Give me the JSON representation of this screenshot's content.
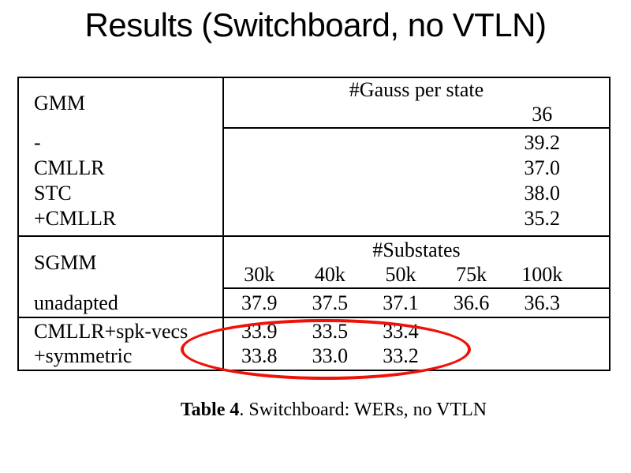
{
  "title": "Results (Switchboard, no VTLN)",
  "table": {
    "gmm": {
      "header": "GMM",
      "col_header": "#Gauss per state",
      "gauss_count": "36",
      "rows": [
        {
          "label": "-",
          "value": "39.2"
        },
        {
          "label": "CMLLR",
          "value": "37.0"
        },
        {
          "label": "STC",
          "value": "38.0"
        },
        {
          "label": "+CMLLR",
          "value": "35.2"
        }
      ]
    },
    "sgmm": {
      "header": "SGMM",
      "col_header": "#Substates",
      "columns": [
        "30k",
        "40k",
        "50k",
        "75k",
        "100k"
      ],
      "unadapted": {
        "label": "unadapted",
        "values": [
          "37.9",
          "37.5",
          "37.1",
          "36.6",
          "36.3"
        ]
      },
      "adapted": [
        {
          "label": "CMLLR+spk-vecs",
          "values": [
            "33.9",
            "33.5",
            "33.4",
            "",
            ""
          ]
        },
        {
          "label": "+symmetric",
          "values": [
            "33.8",
            "33.0",
            "33.2",
            "",
            ""
          ]
        }
      ]
    }
  },
  "caption": {
    "bold": "Table 4",
    "rest": ". Switchboard: WERs, no VTLN"
  },
  "annotation": {
    "shape": "ellipse",
    "color": "#ee1209",
    "highlights": "adapted SGMM WERs for 30k-50k substates"
  },
  "chart_data": {
    "type": "table",
    "title": "Table 4. Switchboard: WERs, no VTLN",
    "sections": [
      {
        "model": "GMM",
        "column_group_label": "#Gauss per state",
        "columns": [
          "36"
        ],
        "rows": [
          {
            "label": "-",
            "values": [
              39.2
            ]
          },
          {
            "label": "CMLLR",
            "values": [
              37.0
            ]
          },
          {
            "label": "STC",
            "values": [
              38.0
            ]
          },
          {
            "label": "+CMLLR",
            "values": [
              35.2
            ]
          }
        ]
      },
      {
        "model": "SGMM",
        "column_group_label": "#Substates",
        "columns": [
          "30k",
          "40k",
          "50k",
          "75k",
          "100k"
        ],
        "rows": [
          {
            "label": "unadapted",
            "values": [
              37.9,
              37.5,
              37.1,
              36.6,
              36.3
            ]
          },
          {
            "label": "CMLLR+spk-vecs",
            "values": [
              33.9,
              33.5,
              33.4,
              null,
              null
            ]
          },
          {
            "label": "+symmetric",
            "values": [
              33.8,
              33.0,
              33.2,
              null,
              null
            ]
          }
        ]
      }
    ],
    "annotations": [
      "red ellipse circling the CMLLR+spk-vecs and +symmetric rows (30k, 40k, 50k values)"
    ]
  }
}
